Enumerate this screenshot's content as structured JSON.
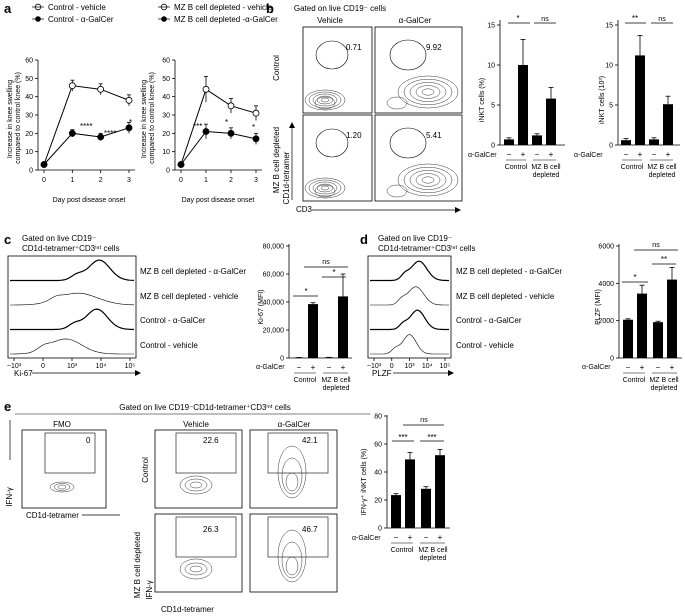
{
  "panels": {
    "a": {
      "letter": "a",
      "left": {
        "legend": [
          "Control - vehicle",
          "Control - α-GalCer"
        ],
        "ylabel": [
          "Increase in knee swelling",
          "compared to control knee (%)"
        ],
        "xlabel": "Day post disease onset",
        "yticks": [
          "0",
          "10",
          "20",
          "30",
          "40",
          "50",
          "60"
        ],
        "xticks": [
          "0",
          "1",
          "2",
          "3"
        ],
        "stars": [
          "****",
          "****",
          "*"
        ]
      },
      "right": {
        "legend": [
          "MZ B cell depleted - vehicle",
          "MZ B cell depleted -α-GalCer"
        ],
        "ylabel": [
          "Increase in knee swelling",
          "compared to control knee (%)"
        ],
        "xlabel": "Day post disease onset",
        "yticks": [
          "0",
          "10",
          "20",
          "30",
          "40",
          "50",
          "60"
        ],
        "xticks": [
          "0",
          "1",
          "2",
          "3"
        ],
        "stars": [
          "***",
          "*",
          "*"
        ]
      }
    },
    "b": {
      "letter": "b",
      "gate_label": "Gated on live CD19⁻ cells",
      "col_labels": [
        "Vehicle",
        "α-GalCer"
      ],
      "row_labels": [
        "Control",
        "MZ B cell depleted"
      ],
      "ylabel": "CD1d-tetramer",
      "xlabel": "CD3",
      "gate_values": [
        "0.71",
        "9.92",
        "1.20",
        "5.41"
      ],
      "axis_ticks": [
        "0",
        "10³",
        "10⁴",
        "10⁵"
      ],
      "bar1": {
        "ylabel": "iNKT cells (%)",
        "yticks": [
          "0",
          "5",
          "10",
          "15"
        ],
        "sig": [
          "*",
          "ns"
        ]
      },
      "bar2": {
        "ylabel": "iNKT cells (10³)",
        "yticks": [
          "0",
          "5",
          "10",
          "15"
        ],
        "sig": [
          "**",
          "ns"
        ]
      }
    },
    "c": {
      "letter": "c",
      "gate_label": [
        "Gated on live CD19⁻",
        "CD1d-tetramer⁺CD3ⁱⁿᵗ cells"
      ],
      "hist_labels": [
        "MZ B cell depleted - α-GalCer",
        "MZ B cell depleted - vehicle",
        "Control - α-GalCer",
        "Control - vehicle"
      ],
      "xlabel": "Ki-67",
      "xticks": [
        "−10³",
        "0",
        "10³",
        "10⁴",
        "10⁵"
      ],
      "bar": {
        "ylabel": "Ki-67 (MFI)",
        "yticks": [
          "0",
          "20,000",
          "40,000",
          "60,000",
          "80,000"
        ],
        "sig": [
          "*",
          "ns",
          "*"
        ]
      }
    },
    "d": {
      "letter": "d",
      "gate_label": [
        "Gated on live CD19⁻",
        "CD1d-tetramer⁺CD3ⁱⁿᵗ cells"
      ],
      "hist_labels": [
        "MZ B cell depleted - α-GalCer",
        "MZ B cell depleted - vehicle",
        "Control - α-GalCer",
        "Control - vehicle"
      ],
      "xlabel": "PLZF",
      "xticks": [
        "−10³",
        "0",
        "10³",
        "10⁴",
        "10⁵"
      ],
      "bar": {
        "ylabel": "PLZF (MFI)",
        "yticks": [
          "0",
          "2000",
          "4000",
          "6000"
        ],
        "sig": [
          "*",
          "ns",
          "**"
        ]
      }
    },
    "e": {
      "letter": "e",
      "gate_label": "Gated on live CD19⁻CD1d-tetramer⁺CD3ⁱⁿᵗ cells",
      "fmo_label": "FMO",
      "col_labels": [
        "Vehicle",
        "α-GalCer"
      ],
      "row_labels": [
        "Control",
        "MZ B cell depleted"
      ],
      "ylabel": "IFN-γ",
      "xlabel": "CD1d-tetramer",
      "gate_values": [
        "0",
        "22.6",
        "42.1",
        "26.3",
        "46.7"
      ],
      "axis_ticks": [
        "0",
        "10³",
        "10⁴",
        "10⁵"
      ],
      "bar": {
        "ylabel": "IFN-γ⁺ iNKT cells (%)",
        "yticks": [
          "0",
          "20",
          "40",
          "60",
          "80"
        ],
        "sig": [
          "***",
          "ns",
          "***"
        ]
      }
    }
  },
  "treatment": {
    "label": "α-GalCer",
    "signs": [
      "−",
      "+",
      "−",
      "+"
    ],
    "groups": [
      "Control",
      "MZ B cell",
      "depleted"
    ]
  },
  "chart_data": [
    {
      "type": "line",
      "id": "a-left",
      "x": [
        0,
        1,
        2,
        3
      ],
      "series": [
        {
          "name": "Control - vehicle",
          "values": [
            3,
            46,
            44,
            38
          ],
          "err": [
            1,
            3,
            3,
            3
          ]
        },
        {
          "name": "Control - α-GalCer",
          "values": [
            3,
            20,
            18,
            23
          ],
          "err": [
            1,
            2,
            2,
            3
          ]
        }
      ],
      "ylim": [
        0,
        60
      ],
      "xlim": [
        0,
        3
      ]
    },
    {
      "type": "line",
      "id": "a-right",
      "x": [
        0,
        1,
        2,
        3
      ],
      "series": [
        {
          "name": "MZ B cell depleted - vehicle",
          "values": [
            3,
            44,
            35,
            31
          ],
          "err": [
            1,
            7,
            4,
            4
          ]
        },
        {
          "name": "MZ B cell depleted -α-GalCer",
          "values": [
            3,
            21,
            20,
            17
          ],
          "err": [
            1,
            4,
            3,
            3
          ]
        }
      ],
      "ylim": [
        0,
        60
      ],
      "xlim": [
        0,
        3
      ]
    },
    {
      "type": "bar",
      "id": "b-pct",
      "values": [
        0.7,
        10.0,
        1.2,
        5.8
      ],
      "err": [
        0.2,
        3.2,
        0.2,
        1.4
      ],
      "ylim": [
        0,
        15
      ]
    },
    {
      "type": "bar",
      "id": "b-num",
      "values": [
        0.6,
        11.2,
        0.7,
        5.1
      ],
      "err": [
        0.2,
        2.5,
        0.2,
        1.0
      ],
      "ylim": [
        0,
        15
      ]
    },
    {
      "type": "bar",
      "id": "c-ki67",
      "values": [
        300,
        38500,
        400,
        44000
      ],
      "err": [
        100,
        1000,
        100,
        16000
      ],
      "ylim": [
        0,
        80000
      ]
    },
    {
      "type": "bar",
      "id": "d-plzf",
      "values": [
        2050,
        3450,
        1920,
        4200
      ],
      "err": [
        50,
        450,
        50,
        650
      ],
      "ylim": [
        0,
        6000
      ]
    },
    {
      "type": "bar",
      "id": "e-ifng",
      "values": [
        23.5,
        49,
        28,
        52
      ],
      "err": [
        1,
        5,
        1.5,
        4
      ],
      "ylim": [
        0,
        80
      ]
    }
  ]
}
